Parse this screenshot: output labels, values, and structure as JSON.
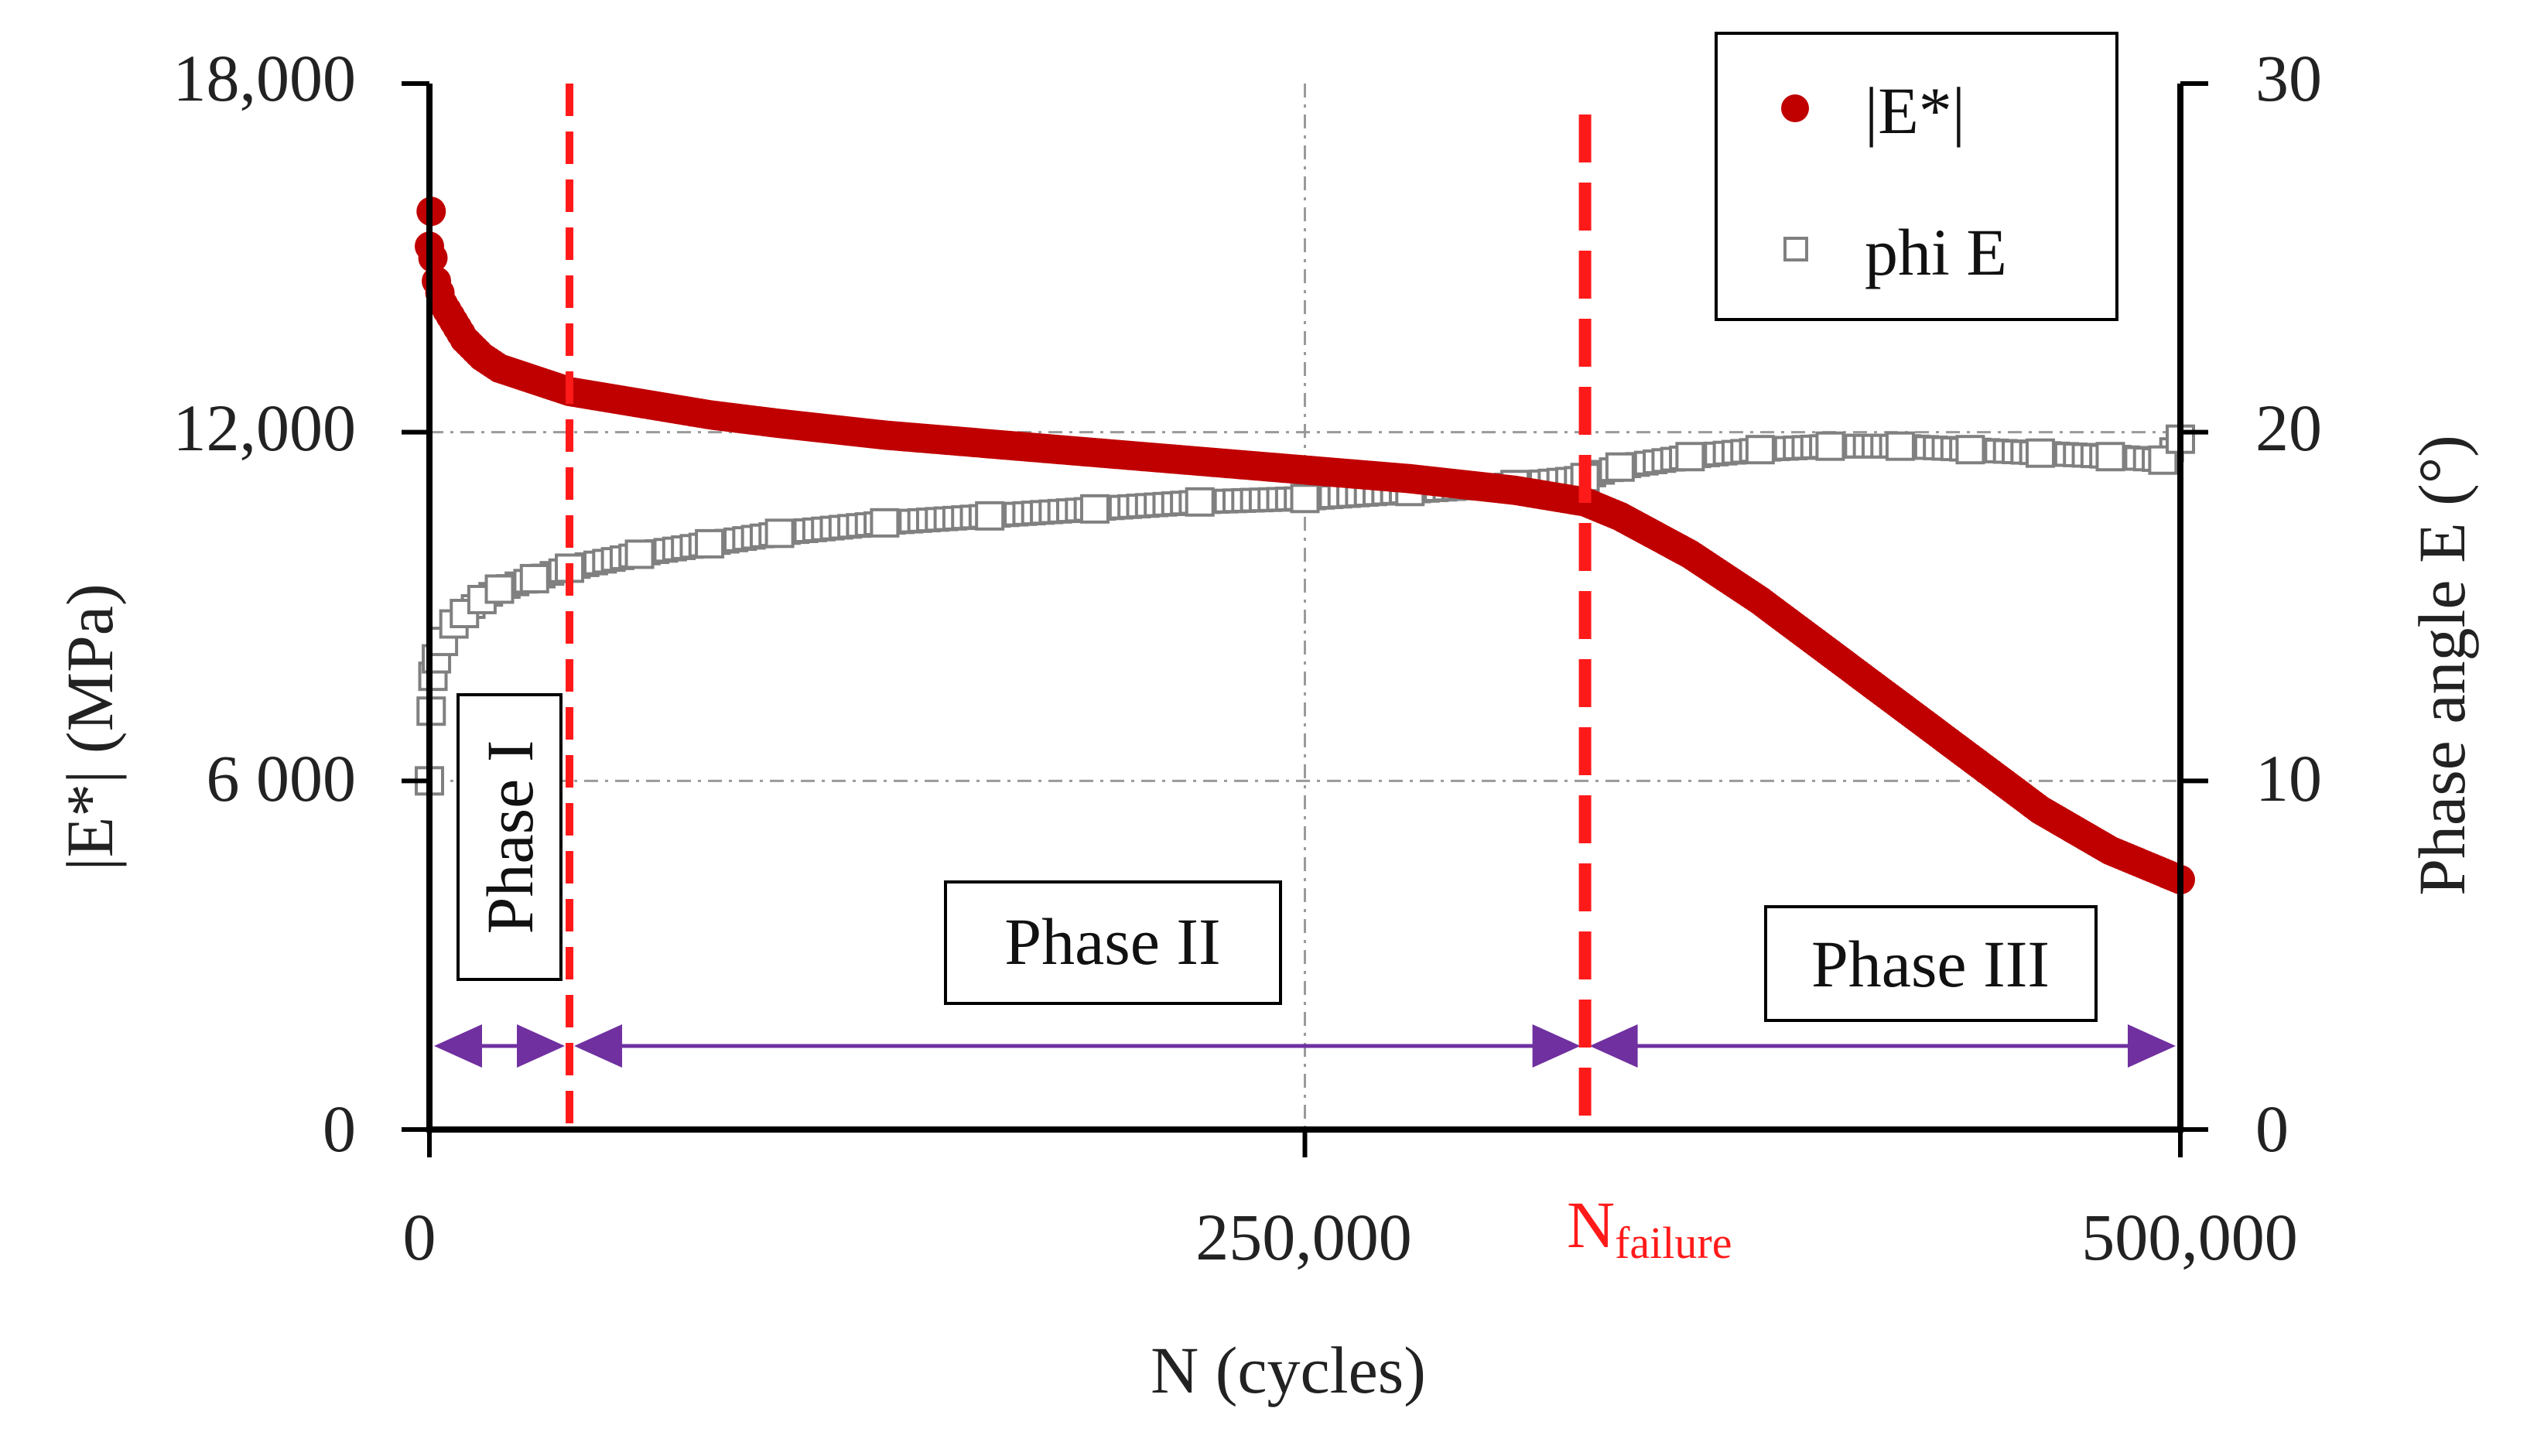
{
  "chart_data": {
    "type": "scatter",
    "title": "",
    "xlabel": "N (cycles)",
    "ylabel_left": "|E*| (MPa)",
    "ylabel_right": "Phase angle E (°)",
    "xlim": [
      0,
      500000
    ],
    "ylim_left": [
      0,
      18000
    ],
    "ylim_right": [
      0,
      30
    ],
    "x_ticks": [
      {
        "value": 0,
        "label": "0"
      },
      {
        "value": 250000,
        "label": "250,000"
      },
      {
        "value": 500000,
        "label": "500,000"
      }
    ],
    "y_left_ticks": [
      {
        "value": 0,
        "label": "0"
      },
      {
        "value": 6000,
        "label": "6 000"
      },
      {
        "value": 12000,
        "label": "12,000"
      },
      {
        "value": 18000,
        "label": "18,000"
      }
    ],
    "y_right_ticks": [
      {
        "value": 0,
        "label": "0"
      },
      {
        "value": 10,
        "label": "10"
      },
      {
        "value": 20,
        "label": "20"
      },
      {
        "value": 30,
        "label": "30"
      }
    ],
    "grid": true,
    "legend_position": "top-right",
    "series": [
      {
        "name": "|E*|",
        "axis": "left",
        "marker": "filled-circle",
        "color": "#c00000",
        "x": [
          0,
          500,
          1000,
          2000,
          4000,
          7000,
          10000,
          15000,
          20000,
          30000,
          40000,
          60000,
          80000,
          100000,
          130000,
          160000,
          190000,
          220000,
          250000,
          280000,
          310000,
          330000,
          340000,
          360000,
          380000,
          400000,
          420000,
          440000,
          460000,
          480000,
          500000
        ],
        "values": [
          15200,
          15800,
          15000,
          14600,
          14200,
          13900,
          13600,
          13300,
          13100,
          12900,
          12700,
          12500,
          12300,
          12150,
          11950,
          11800,
          11650,
          11500,
          11350,
          11200,
          11000,
          10800,
          10550,
          9900,
          9100,
          8200,
          7300,
          6400,
          5500,
          4800,
          4300
        ]
      },
      {
        "name": "phi E",
        "axis": "right",
        "marker": "open-square",
        "color": "#808080",
        "x": [
          0,
          500,
          1000,
          2000,
          4000,
          7000,
          10000,
          15000,
          20000,
          30000,
          40000,
          60000,
          80000,
          100000,
          130000,
          160000,
          190000,
          220000,
          250000,
          280000,
          310000,
          330000,
          340000,
          360000,
          380000,
          400000,
          420000,
          440000,
          460000,
          480000,
          495000,
          500000
        ],
        "values": [
          10,
          12,
          13,
          13.5,
          14,
          14.5,
          14.8,
          15.2,
          15.5,
          15.8,
          16.1,
          16.5,
          16.8,
          17.1,
          17.4,
          17.6,
          17.8,
          18,
          18.1,
          18.3,
          18.5,
          18.7,
          19,
          19.3,
          19.5,
          19.6,
          19.6,
          19.5,
          19.4,
          19.3,
          19.2,
          19.8
        ]
      }
    ],
    "annotations": {
      "phase_boundaries": [
        40000,
        330000
      ],
      "n_failure_value": 330000,
      "n_failure_label_main": "N",
      "n_failure_label_sub": "failure",
      "phases": [
        {
          "label": "Phase I",
          "from": 0,
          "to": 40000,
          "orientation": "vertical"
        },
        {
          "label": "Phase II",
          "from": 40000,
          "to": 330000,
          "orientation": "horizontal"
        },
        {
          "label": "Phase III",
          "from": 330000,
          "to": 500000,
          "orientation": "horizontal"
        }
      ]
    }
  },
  "colors": {
    "modulus": "#c00000",
    "phase": "#808080",
    "boundary": "#ff1a1a",
    "arrow": "#7030a0",
    "axis": "#000000",
    "grid": "#9a9a9a"
  }
}
